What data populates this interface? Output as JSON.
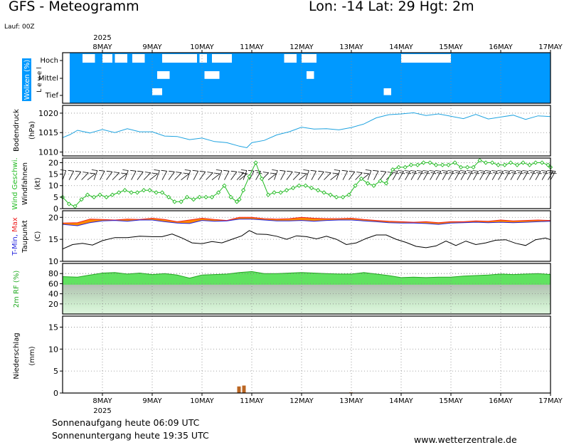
{
  "header": {
    "title": "GFS - Meteogramm",
    "location": "Lon: -14 Lat: 29 Hgt: 2m",
    "run": "Lauf: 00Z"
  },
  "footer": {
    "sunrise": "Sonnenaufgang heute 06:09 UTC",
    "sunset": "Sonnenuntergang heute 19:35 UTC",
    "site": "www.wetterzentrale.de"
  },
  "colors": {
    "sky": "#0099ff",
    "pressure": "#1fa3e0",
    "wind": "#22bb22",
    "barb": "#000000",
    "tmin": "#2222dd",
    "tmax": "#ee2222",
    "tband": "#ff8800",
    "dew": "#000000",
    "rh": "#44dd44",
    "precip": "#bb6622"
  },
  "chart_data": {
    "type": "line",
    "year": "2025",
    "x_labels": [
      "8MAY",
      "9MAY",
      "10MAY",
      "11MAY",
      "12MAY",
      "13MAY",
      "14MAY",
      "15MAY",
      "16MAY",
      "17MAY"
    ],
    "x_range_days": [
      7.2,
      17.0
    ],
    "panels": {
      "clouds": {
        "ylabel": "Wolken (%)",
        "level_word": "L e v e l",
        "levels": [
          "Hoch",
          "Mittel",
          "Tief"
        ],
        "clear_gaps": [
          {
            "level": "Hoch",
            "from": 7.6,
            "to": 7.85
          },
          {
            "level": "Hoch",
            "from": 8.0,
            "to": 8.2
          },
          {
            "level": "Hoch",
            "from": 8.25,
            "to": 8.5
          },
          {
            "level": "Hoch",
            "from": 8.6,
            "to": 8.85
          },
          {
            "level": "Hoch",
            "from": 9.2,
            "to": 9.9
          },
          {
            "level": "Hoch",
            "from": 9.95,
            "to": 10.1
          },
          {
            "level": "Hoch",
            "from": 10.2,
            "to": 10.6
          },
          {
            "level": "Hoch",
            "from": 11.65,
            "to": 11.9
          },
          {
            "level": "Hoch",
            "from": 12.0,
            "to": 12.3
          },
          {
            "level": "Hoch",
            "from": 14.0,
            "to": 15.0
          },
          {
            "level": "Mittel",
            "from": 10.05,
            "to": 10.35
          },
          {
            "level": "Mittel",
            "from": 9.1,
            "to": 9.35
          },
          {
            "level": "Mittel",
            "from": 12.1,
            "to": 12.25
          },
          {
            "level": "Tief",
            "from": 9.0,
            "to": 9.2
          },
          {
            "level": "Tief",
            "from": 13.65,
            "to": 13.8
          }
        ]
      },
      "pressure": {
        "ylabel": "Bodendruck",
        "unit": "(hPa)",
        "ylim": [
          1009,
          1022
        ],
        "ticks": [
          1010,
          1015,
          1020
        ],
        "series": [
          {
            "x": [
              7.2,
              7.35,
              7.5,
              7.75,
              8.0,
              8.25,
              8.5,
              8.75,
              9.0,
              9.25,
              9.5,
              9.75,
              10.0,
              10.25,
              10.5,
              10.75,
              10.9,
              11.0,
              11.25,
              11.5,
              11.75,
              12.0,
              12.25,
              12.5,
              12.75,
              13.0,
              13.25,
              13.5,
              13.75,
              14.0,
              14.25,
              14.5,
              14.75,
              15.0,
              15.25,
              15.5,
              15.75,
              16.0,
              16.25,
              16.5,
              16.75,
              17.0
            ],
            "values": [
              1013.7,
              1014.5,
              1015.6,
              1014.9,
              1015.8,
              1015.0,
              1016.0,
              1015.2,
              1015.2,
              1014.1,
              1014.0,
              1013.2,
              1013.6,
              1012.7,
              1012.4,
              1011.5,
              1011.1,
              1012.4,
              1013.0,
              1014.4,
              1015.2,
              1016.4,
              1015.9,
              1016.0,
              1015.7,
              1016.3,
              1017.2,
              1018.8,
              1019.6,
              1019.8,
              1020.1,
              1019.4,
              1019.8,
              1019.2,
              1018.6,
              1019.7,
              1018.5,
              1019.0,
              1019.5,
              1018.4,
              1019.3,
              1019.1
            ]
          }
        ]
      },
      "wind": {
        "ylabel_wind": "Wind",
        "ylabel_gust": "Geschwi.",
        "ylabel_barb": "Windfahnen",
        "unit": "(kt)",
        "ylim": [
          0,
          22
        ],
        "ticks": [
          0,
          5,
          10,
          15,
          20
        ],
        "series": [
          {
            "x": [
              7.2,
              7.33,
              7.45,
              7.58,
              7.7,
              7.83,
              7.95,
              8.08,
              8.2,
              8.33,
              8.45,
              8.58,
              8.7,
              8.83,
              8.95,
              9.08,
              9.2,
              9.33,
              9.45,
              9.58,
              9.7,
              9.83,
              9.95,
              10.08,
              10.2,
              10.33,
              10.45,
              10.58,
              10.7,
              10.75,
              10.83,
              10.95,
              11.08,
              11.2,
              11.33,
              11.45,
              11.58,
              11.7,
              11.83,
              11.95,
              12.08,
              12.2,
              12.33,
              12.45,
              12.58,
              12.7,
              12.83,
              12.95,
              13.08,
              13.2,
              13.33,
              13.45,
              13.58,
              13.7,
              13.83,
              13.95,
              14.08,
              14.2,
              14.33,
              14.45,
              14.58,
              14.7,
              14.83,
              14.95,
              15.08,
              15.2,
              15.33,
              15.45,
              15.58,
              15.7,
              15.83,
              15.95,
              16.08,
              16.2,
              16.33,
              16.45,
              16.58,
              16.7,
              16.83,
              16.95,
              17.0
            ],
            "values": [
              5,
              2,
              1,
              4,
              6,
              5,
              6,
              5,
              6,
              7,
              8,
              7,
              7,
              8,
              8,
              7,
              7,
              5,
              3,
              3,
              5,
              4,
              5,
              5,
              5,
              7,
              10,
              5,
              3,
              4,
              8,
              14,
              20,
              13,
              6,
              7,
              7,
              8,
              9,
              10,
              10,
              9,
              8,
              7,
              6,
              5,
              5,
              6,
              10,
              13,
              11,
              10,
              12,
              11,
              17,
              18,
              18,
              19,
              19,
              20,
              20,
              19,
              19,
              19,
              20,
              18,
              18,
              18,
              21,
              20,
              20,
              19,
              19,
              20,
              19,
              20,
              19,
              20,
              20,
              19,
              18
            ]
          }
        ]
      },
      "temperature": {
        "ylabel_tmin": "T-Min,",
        "ylabel_tmax": "Max",
        "ylabel_dew": "Taupunkt",
        "unit": "(C)",
        "ylim": [
          10,
          21.5
        ],
        "ticks": [
          10,
          15,
          20
        ],
        "series": [
          {
            "name": "T-Min",
            "x": [
              7.2,
              7.5,
              7.75,
              8.0,
              8.25,
              8.5,
              8.75,
              9.0,
              9.25,
              9.5,
              9.75,
              10.0,
              10.25,
              10.5,
              10.75,
              11.0,
              11.25,
              11.5,
              11.75,
              12.0,
              12.25,
              12.5,
              12.75,
              13.0,
              13.25,
              13.5,
              13.75,
              14.0,
              14.25,
              14.5,
              14.75,
              15.0,
              15.25,
              15.5,
              15.75,
              16.0,
              16.25,
              16.5,
              16.75,
              17.0
            ],
            "values": [
              18.4,
              18.1,
              18.8,
              19.2,
              19.3,
              19.1,
              19.4,
              19.4,
              19.0,
              18.7,
              18.6,
              19.3,
              19.1,
              19.2,
              19.6,
              19.6,
              19.4,
              19.2,
              19.2,
              19.3,
              19.1,
              19.3,
              19.4,
              19.4,
              19.2,
              19.0,
              18.8,
              18.7,
              18.7,
              18.6,
              18.4,
              18.7,
              18.8,
              18.9,
              18.8,
              18.9,
              18.8,
              18.9,
              19.0,
              19.1
            ]
          },
          {
            "name": "T-Max",
            "x": [
              7.2,
              7.5,
              7.75,
              8.0,
              8.25,
              8.5,
              8.75,
              9.0,
              9.25,
              9.5,
              9.75,
              10.0,
              10.25,
              10.5,
              10.75,
              11.0,
              11.25,
              11.5,
              11.75,
              12.0,
              12.25,
              12.5,
              12.75,
              13.0,
              13.25,
              13.5,
              13.75,
              14.0,
              14.25,
              14.5,
              14.75,
              15.0,
              15.25,
              15.5,
              15.75,
              16.0,
              16.25,
              16.5,
              16.75,
              17.0
            ],
            "values": [
              18.7,
              18.8,
              19.6,
              19.5,
              19.4,
              19.6,
              19.5,
              19.8,
              19.5,
              19.0,
              19.4,
              19.8,
              19.5,
              19.3,
              20.0,
              20.0,
              19.7,
              19.6,
              19.7,
              20.0,
              19.8,
              19.7,
              19.7,
              19.8,
              19.5,
              19.3,
              19.1,
              19.0,
              18.9,
              19.0,
              18.8,
              19.0,
              19.0,
              19.2,
              19.1,
              19.4,
              19.2,
              19.3,
              19.4,
              19.3
            ]
          },
          {
            "name": "Taupunkt",
            "x": [
              7.2,
              7.4,
              7.6,
              7.8,
              8.0,
              8.25,
              8.5,
              8.75,
              9.0,
              9.2,
              9.4,
              9.6,
              9.8,
              10.0,
              10.2,
              10.4,
              10.6,
              10.8,
              10.95,
              11.1,
              11.3,
              11.5,
              11.7,
              11.9,
              12.1,
              12.3,
              12.5,
              12.7,
              12.9,
              13.1,
              13.3,
              13.5,
              13.7,
              13.9,
              14.1,
              14.3,
              14.5,
              14.7,
              14.9,
              15.1,
              15.3,
              15.5,
              15.7,
              15.9,
              16.1,
              16.3,
              16.5,
              16.7,
              16.9,
              17.0
            ],
            "values": [
              12.8,
              13.8,
              14.1,
              13.7,
              14.7,
              15.4,
              15.4,
              15.7,
              15.6,
              15.6,
              16.2,
              15.3,
              14.2,
              14.0,
              14.5,
              14.2,
              15.0,
              15.8,
              17.0,
              16.2,
              16.1,
              15.7,
              15.0,
              15.8,
              15.6,
              15.1,
              15.7,
              15.0,
              13.8,
              14.2,
              15.2,
              16.0,
              16.0,
              15.0,
              14.3,
              13.4,
              13.1,
              13.5,
              14.6,
              13.6,
              14.6,
              13.8,
              14.2,
              14.8,
              14.9,
              14.1,
              13.6,
              14.9,
              15.3,
              14.9
            ]
          }
        ]
      },
      "humidity": {
        "ylabel": "2m RF (%)",
        "ylim": [
          0,
          100
        ],
        "ticks": [
          20,
          40,
          60,
          80
        ],
        "series": [
          {
            "x": [
              7.2,
              7.5,
              7.75,
              8.0,
              8.25,
              8.5,
              8.75,
              9.0,
              9.25,
              9.5,
              9.75,
              10.0,
              10.25,
              10.5,
              10.75,
              11.0,
              11.25,
              11.5,
              11.75,
              12.0,
              12.25,
              12.5,
              12.75,
              13.0,
              13.25,
              13.5,
              13.75,
              14.0,
              14.25,
              14.5,
              14.75,
              15.0,
              15.25,
              15.5,
              15.75,
              16.0,
              16.25,
              16.5,
              16.75,
              17.0
            ],
            "values": [
              74,
              73,
              77,
              81,
              82,
              79,
              81,
              78,
              80,
              77,
              71,
              77,
              78,
              79,
              82,
              84,
              80,
              80,
              81,
              82,
              81,
              80,
              79,
              79,
              82,
              79,
              76,
              72,
              73,
              72,
              73,
              73,
              75,
              76,
              77,
              79,
              78,
              79,
              80,
              78
            ]
          }
        ]
      },
      "precip": {
        "ylabel": "Niederschlag",
        "unit": "(mm)",
        "ylim": [
          0,
          17.5
        ],
        "ticks": [
          0,
          5,
          10,
          15
        ],
        "bars": [
          {
            "x": 10.75,
            "value": 1.5
          },
          {
            "x": 10.85,
            "value": 1.7
          },
          {
            "x": 13.0,
            "value": 0.15
          }
        ]
      }
    }
  }
}
